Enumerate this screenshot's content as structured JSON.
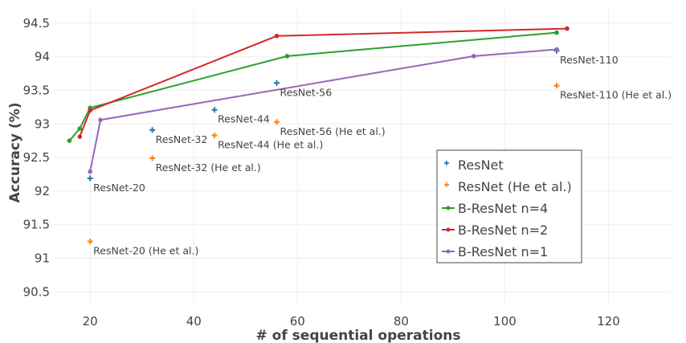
{
  "colors": {
    "resnet": "#1f77b4",
    "resnet_he": "#ff7f0e",
    "n4": "#2ca02c",
    "n2": "#d62728",
    "n1": "#9467bd"
  },
  "chart_data": {
    "type": "scatter",
    "xlabel": "# of sequential operations",
    "ylabel": "Accuracy (%)",
    "xlim": [
      13,
      132
    ],
    "ylim": [
      90.3,
      94.75
    ],
    "xticks": [
      20,
      40,
      60,
      80,
      100,
      120
    ],
    "yticks": [
      90.5,
      91,
      91.5,
      92,
      92.5,
      93,
      93.5,
      94,
      94.5
    ],
    "grid": true,
    "legend_position": "right",
    "series": [
      {
        "name": "ResNet",
        "mode": "markers",
        "color": "#1f77b4",
        "x": [
          20,
          32,
          44,
          56,
          110
        ],
        "y": [
          92.19,
          92.91,
          93.21,
          93.61,
          94.09
        ],
        "labels": [
          "ResNet-20",
          "ResNet-32",
          "ResNet-44",
          "ResNet-56",
          "ResNet-110"
        ]
      },
      {
        "name": "ResNet (He et al.)",
        "mode": "markers",
        "color": "#ff7f0e",
        "x": [
          20,
          32,
          44,
          56,
          110
        ],
        "y": [
          91.25,
          92.49,
          92.83,
          93.03,
          93.57
        ],
        "labels": [
          "ResNet-20 (He et al.)",
          "ResNet-32 (He et al.)",
          "ResNet-44 (He et al.)",
          "ResNet-56 (He et al.)",
          "ResNet-110 (He et al.)"
        ]
      },
      {
        "name": "B-ResNet n=4",
        "mode": "lines+markers",
        "color": "#2ca02c",
        "x": [
          16,
          18,
          20,
          58,
          110
        ],
        "y": [
          92.75,
          92.93,
          93.24,
          94.01,
          94.36
        ]
      },
      {
        "name": "B-ResNet n=2",
        "mode": "lines+markers",
        "color": "#d62728",
        "x": [
          18,
          20,
          56,
          112
        ],
        "y": [
          92.81,
          93.2,
          94.31,
          94.42
        ]
      },
      {
        "name": "B-ResNet n=1",
        "mode": "lines+markers",
        "color": "#9467bd",
        "x": [
          20,
          22,
          94,
          110
        ],
        "y": [
          92.29,
          93.06,
          94.01,
          94.11
        ]
      }
    ]
  }
}
